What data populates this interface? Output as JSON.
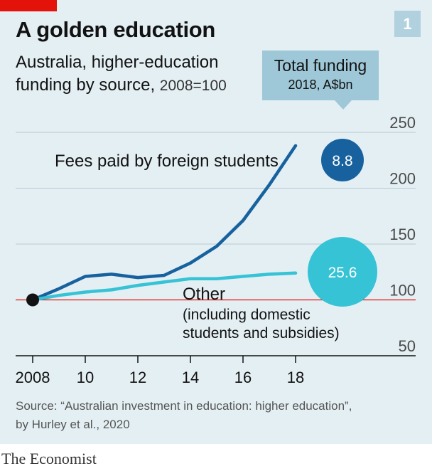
{
  "panel": {
    "chart_number": "1"
  },
  "header": {
    "title": "A golden education",
    "subtitle_line1": "Australia, higher-education",
    "subtitle_line2": "funding by source,",
    "subtitle_unit": "2008=100"
  },
  "total_box": {
    "title": "Total funding",
    "subtitle": "2018, A$bn"
  },
  "bubbles": [
    {
      "series": "Fees paid by foreign students",
      "label": "8.8",
      "value": 8.8,
      "color": "#17629e"
    },
    {
      "series": "Other",
      "label": "25.6",
      "value": 25.6,
      "color": "#35c3d5"
    }
  ],
  "chart_data": {
    "type": "line",
    "x": [
      2008,
      2009,
      2010,
      2011,
      2012,
      2013,
      2014,
      2015,
      2016,
      2017,
      2018
    ],
    "xticks": [
      "2008",
      "10",
      "12",
      "14",
      "16",
      "18"
    ],
    "xtick_values": [
      2008,
      2010,
      2012,
      2014,
      2016,
      2018
    ],
    "ylim": [
      50,
      250
    ],
    "yticks": [
      "250",
      "200",
      "150",
      "100",
      "50"
    ],
    "ytick_values": [
      250,
      200,
      150,
      100,
      50
    ],
    "baseline": 100,
    "gridlines": true,
    "series": [
      {
        "name": "Fees paid by foreign students",
        "color": "#17629e",
        "values": [
          100,
          110,
          121,
          123,
          120,
          122,
          133,
          148,
          171,
          203,
          238
        ]
      },
      {
        "name": "Other",
        "note": "(including domestic students and subsidies)",
        "color": "#35c3d5",
        "values": [
          100,
          104,
          107,
          109,
          113,
          116,
          119,
          119,
          121,
          123,
          124
        ]
      }
    ],
    "labels": {
      "foreign": "Fees paid by foreign students",
      "other": "Other",
      "other_note1": "(including domestic",
      "other_note2": "students and subsidies)"
    }
  },
  "footer": {
    "source_line1": "Source: “Australian investment in education: higher education”,",
    "source_line2": "by Hurley et al., 2020",
    "brand": "The Economist"
  }
}
